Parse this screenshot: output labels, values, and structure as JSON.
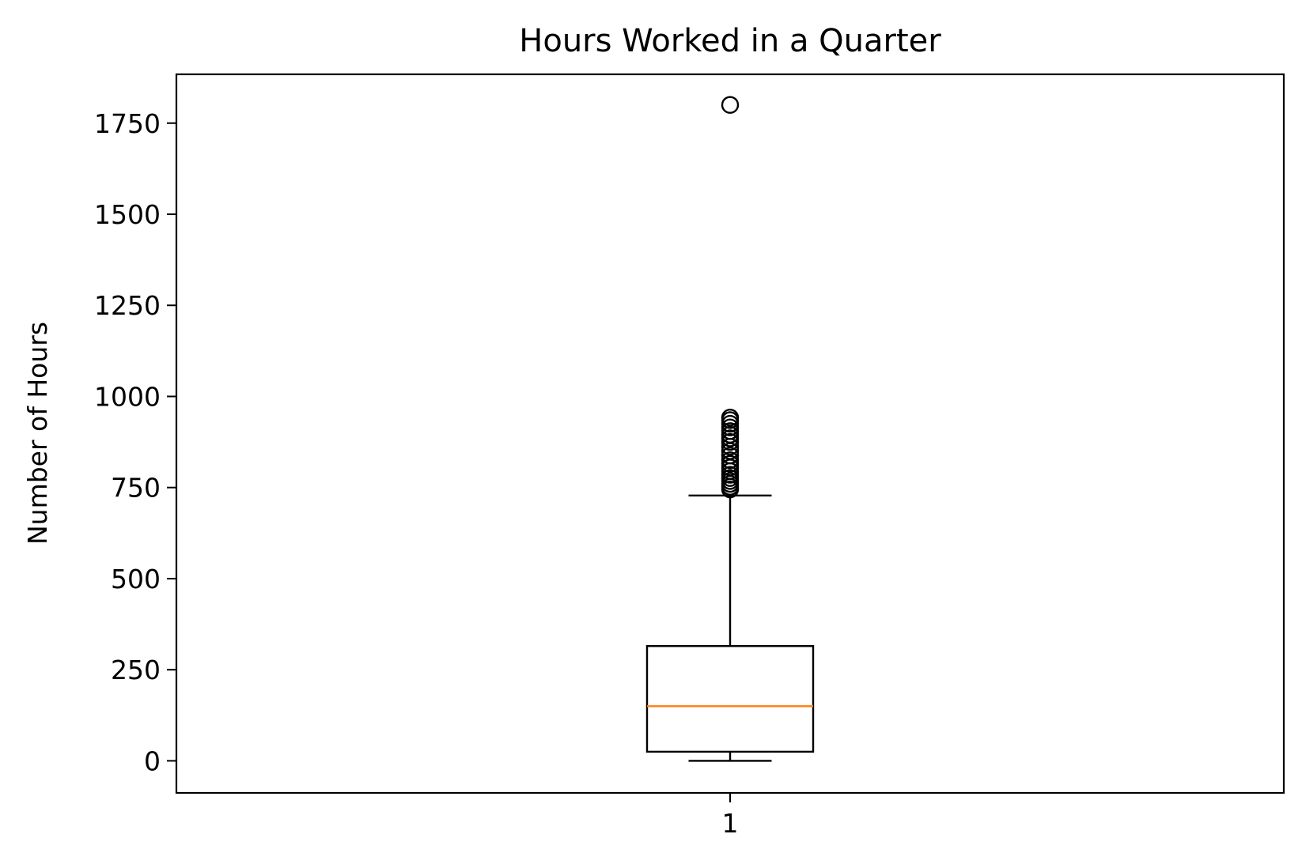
{
  "chart_data": {
    "type": "box",
    "title": "Hours Worked in a Quarter",
    "xlabel": "",
    "ylabel": "Number of Hours",
    "categories": [
      "1"
    ],
    "ylim": [
      -88,
      1884
    ],
    "yticks": [
      0,
      250,
      500,
      750,
      1000,
      1250,
      1500,
      1750
    ],
    "grid": false,
    "boxes": [
      {
        "category": "1",
        "whisker_low": 0,
        "q1": 25,
        "median": 150,
        "q3": 315,
        "whisker_high": 728,
        "outliers": [
          745,
          752,
          760,
          768,
          776,
          785,
          795,
          805,
          815,
          825,
          838,
          850,
          862,
          875,
          885,
          895,
          905,
          915,
          925,
          935,
          942,
          1800
        ]
      }
    ],
    "colors": {
      "box": "#000000",
      "median": "#ff7f0e",
      "outlier": "#000000"
    }
  }
}
